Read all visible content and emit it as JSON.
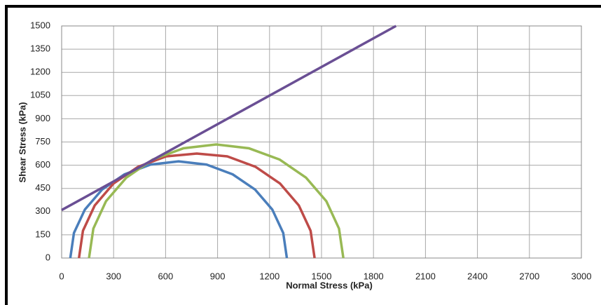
{
  "chart_data": {
    "type": "line",
    "x_label": "Normal Stress (kPa)",
    "y_label": "Shear Stress (kPa)",
    "xlim": [
      0,
      3000
    ],
    "xticks": [
      0,
      300,
      600,
      900,
      1200,
      1500,
      1800,
      2100,
      2400,
      2700,
      3000
    ],
    "ylim": [
      0,
      1500
    ],
    "yticks": [
      0,
      150,
      300,
      450,
      600,
      750,
      900,
      1050,
      1200,
      1350,
      1500
    ],
    "grid": true,
    "series": [
      {
        "color": "#4a7ebb",
        "x": [
          50,
          71,
          134,
          233,
          363,
          513,
          675,
          837,
          987,
          1117,
          1216,
          1279,
          1300
        ],
        "values": [
          0,
          162,
          313,
          442,
          541,
          604,
          625,
          604,
          541,
          442,
          313,
          162,
          0
        ]
      },
      {
        "color": "#be4b48",
        "x": [
          100,
          123,
          191,
          299,
          440,
          604,
          780,
          956,
          1120,
          1261,
          1369,
          1437,
          1460
        ],
        "values": [
          0,
          176,
          340,
          481,
          589,
          657,
          675,
          657,
          589,
          481,
          340,
          176,
          0
        ]
      },
      {
        "color": "#98b954",
        "x": [
          158,
          183,
          256,
          373,
          525,
          702,
          892,
          1082,
          1259,
          1411,
          1528,
          1601,
          1626
        ],
        "values": [
          0,
          190,
          367,
          519,
          636,
          709,
          734,
          709,
          636,
          519,
          367,
          190,
          0
        ]
      },
      {
        "color": "#6a4f94",
        "x": [
          0,
          1930
        ],
        "values": [
          310,
          1500
        ]
      }
    ]
  }
}
